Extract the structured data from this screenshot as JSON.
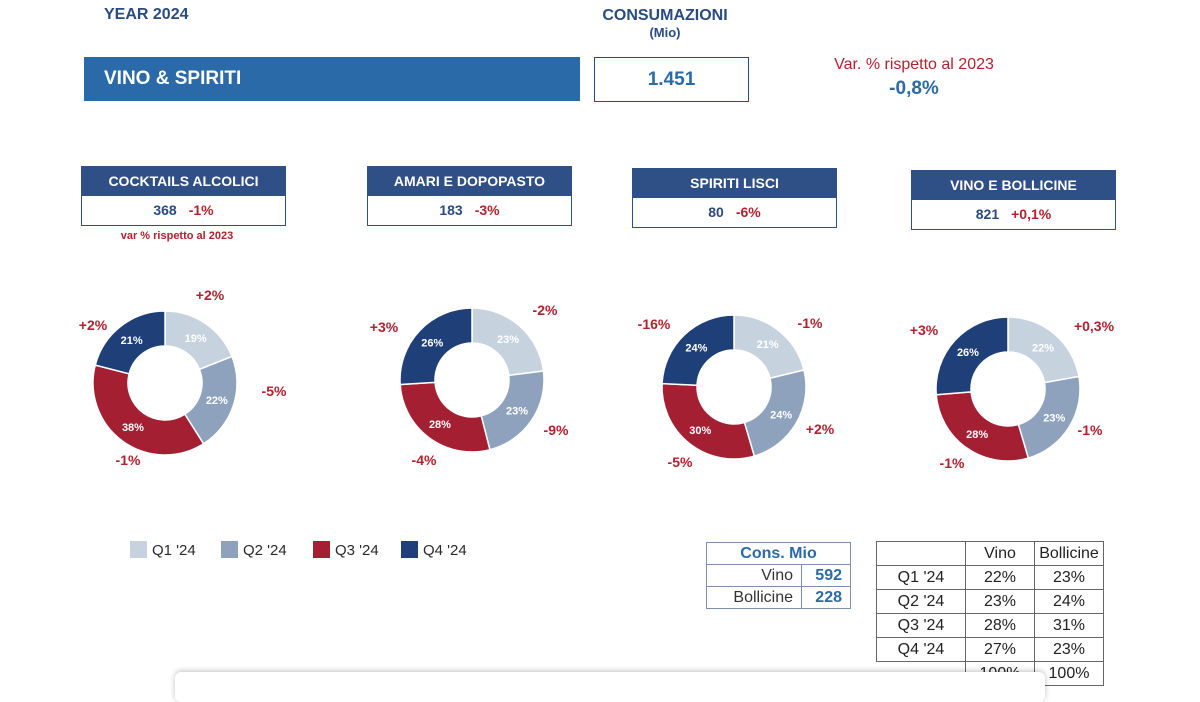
{
  "header": {
    "year": "YEAR 2024",
    "consumption_title": "CONSUMAZIONI",
    "consumption_unit": "(Mio)",
    "category": "VINO & SPIRITI",
    "total": "1.451",
    "var_label": "Var. % rispetto al 2023",
    "var_value": "-0,8%"
  },
  "categories": [
    {
      "name": "COCKTAILS ALCOLICI",
      "value": "368",
      "var": "-1%"
    },
    {
      "name": "AMARI E DOPOPASTO",
      "value": "183",
      "var": "-3%"
    },
    {
      "name": "SPIRITI LISCI",
      "value": "80",
      "var": "-6%"
    },
    {
      "name": "VINO E BOLLICINE",
      "value": "821",
      "var": "+0,1%"
    }
  ],
  "cat_note": "var % rispetto al 2023",
  "colors": {
    "Q1": "#c7d2df",
    "Q2": "#8fa2bd",
    "Q3": "#a41f32",
    "Q4": "#1e3f78"
  },
  "chart_data": [
    {
      "type": "pie",
      "title": "COCKTAILS ALCOLICI",
      "categories": [
        "Q1 '24",
        "Q2 '24",
        "Q3 '24",
        "Q4 '24"
      ],
      "values": [
        19,
        22,
        38,
        21
      ],
      "labels": [
        "19%",
        "22%",
        "38%",
        "21%"
      ],
      "var_labels": [
        "+2%",
        "-5%",
        "-1%",
        "+2%"
      ]
    },
    {
      "type": "pie",
      "title": "AMARI E DOPOPASTO",
      "categories": [
        "Q1 '24",
        "Q2 '24",
        "Q3 '24",
        "Q4 '24"
      ],
      "values": [
        23,
        23,
        28,
        26
      ],
      "labels": [
        "23%",
        "23%",
        "28%",
        "26%"
      ],
      "var_labels": [
        "-2%",
        "-9%",
        "-4%",
        "+3%"
      ]
    },
    {
      "type": "pie",
      "title": "SPIRITI LISCI",
      "categories": [
        "Q1 '24",
        "Q2 '24",
        "Q3 '24",
        "Q4 '24"
      ],
      "values": [
        21,
        24,
        30,
        24
      ],
      "labels": [
        "21%",
        "24%",
        "30%",
        "24%"
      ],
      "var_labels": [
        "-1%",
        "+2%",
        "-5%",
        "-16%"
      ]
    },
    {
      "type": "pie",
      "title": "VINO E BOLLICINE",
      "categories": [
        "Q1 '24",
        "Q2 '24",
        "Q3 '24",
        "Q4 '24"
      ],
      "values": [
        22,
        23,
        28,
        26
      ],
      "labels": [
        "22%",
        "23%",
        "28%",
        "26%"
      ],
      "var_labels": [
        "+0,3%",
        "-1%",
        "-1%",
        "+3%"
      ]
    }
  ],
  "legend": [
    "Q1 '24",
    "Q2 '24",
    "Q3 '24",
    "Q4 '24"
  ],
  "cons_table": {
    "title": "Cons. Mio",
    "rows": [
      {
        "label": "Vino",
        "value": "592"
      },
      {
        "label": "Bollicine",
        "value": "228"
      }
    ]
  },
  "split_table": {
    "headers": [
      "",
      "Vino",
      "Bollicine"
    ],
    "rows": [
      [
        "Q1 '24",
        "22%",
        "23%"
      ],
      [
        "Q2 '24",
        "23%",
        "24%"
      ],
      [
        "Q3 '24",
        "28%",
        "31%"
      ],
      [
        "Q4 '24",
        "27%",
        "23%"
      ],
      [
        "",
        "100%",
        "100%"
      ]
    ]
  }
}
